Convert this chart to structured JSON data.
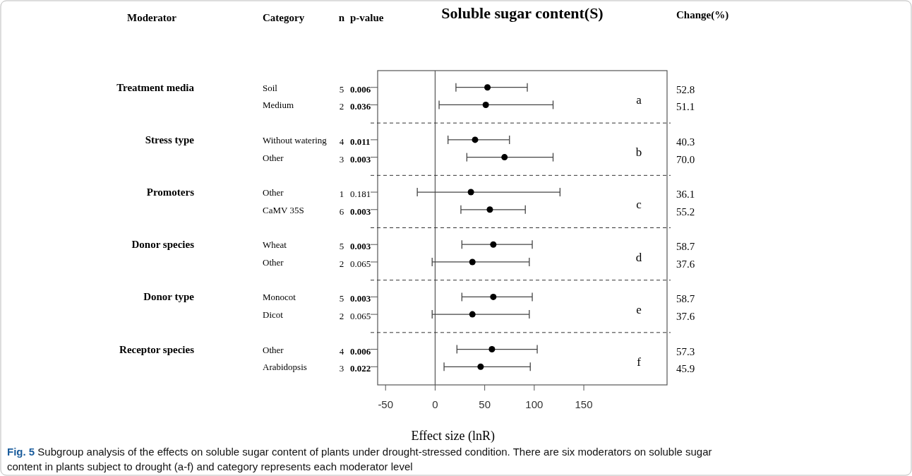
{
  "chart_data": {
    "type": "scatter",
    "orientation": "horizontal",
    "title": "Soluble sugar content(S)",
    "xlabel": "Effect size (lnR)",
    "categories": [
      "Soil",
      "Medium",
      "Without watering",
      "Other",
      "Other",
      "CaMV 35S",
      "Wheat",
      "Other",
      "Monocot",
      "Dicot",
      "Other",
      "Arabidopsis"
    ],
    "values": [
      52.8,
      51.1,
      40.3,
      70.0,
      36.1,
      55.2,
      58.7,
      37.6,
      58.7,
      37.6,
      57.3,
      45.9
    ],
    "errors": [
      [
        21,
        93
      ],
      [
        4,
        119
      ],
      [
        13,
        75
      ],
      [
        32,
        119
      ],
      [
        -18,
        126
      ],
      [
        26,
        91
      ],
      [
        27,
        98
      ],
      [
        -3,
        95
      ],
      [
        27,
        98
      ],
      [
        -3,
        95
      ],
      [
        22,
        103
      ],
      [
        9,
        96
      ]
    ],
    "value_labels": [
      "52.8",
      "51.1",
      "40.3",
      "70.0",
      "36.1",
      "55.2",
      "58.7",
      "37.6",
      "58.7",
      "37.6",
      "57.3",
      "45.9"
    ],
    "color": "#000000",
    "marker": "circle",
    "grid": false,
    "xlim": [
      -58,
      234
    ],
    "xticks": [
      -50,
      0,
      50,
      100,
      150
    ],
    "ref_lines": [
      {
        "axis": "x",
        "value": 0
      }
    ],
    "annotations": [
      "Moderator",
      "Category",
      "n",
      "p-value",
      "Change(%)",
      "Treatment media",
      "Stress type",
      "Promoters",
      "Donor species",
      "Donor type",
      "Receptor species",
      "5",
      "2",
      "4",
      "3",
      "1",
      "6",
      "5",
      "2",
      "5",
      "2",
      "4",
      "3",
      "0.006",
      "0.036",
      "0.011",
      "0.003",
      "0.181",
      "0.003",
      "0.003",
      "0.065",
      "0.003",
      "0.065",
      "0.006",
      "0.022",
      "a",
      "b",
      "c",
      "d",
      "e",
      "f",
      "Fig. 5 Subgroup analysis of the effects on soluble sugar content of plants under drought-stressed condition. There are six moderators on soluble sugar content in plants subject to drought (a-f) and category represents each moderator level"
    ]
  }
}
